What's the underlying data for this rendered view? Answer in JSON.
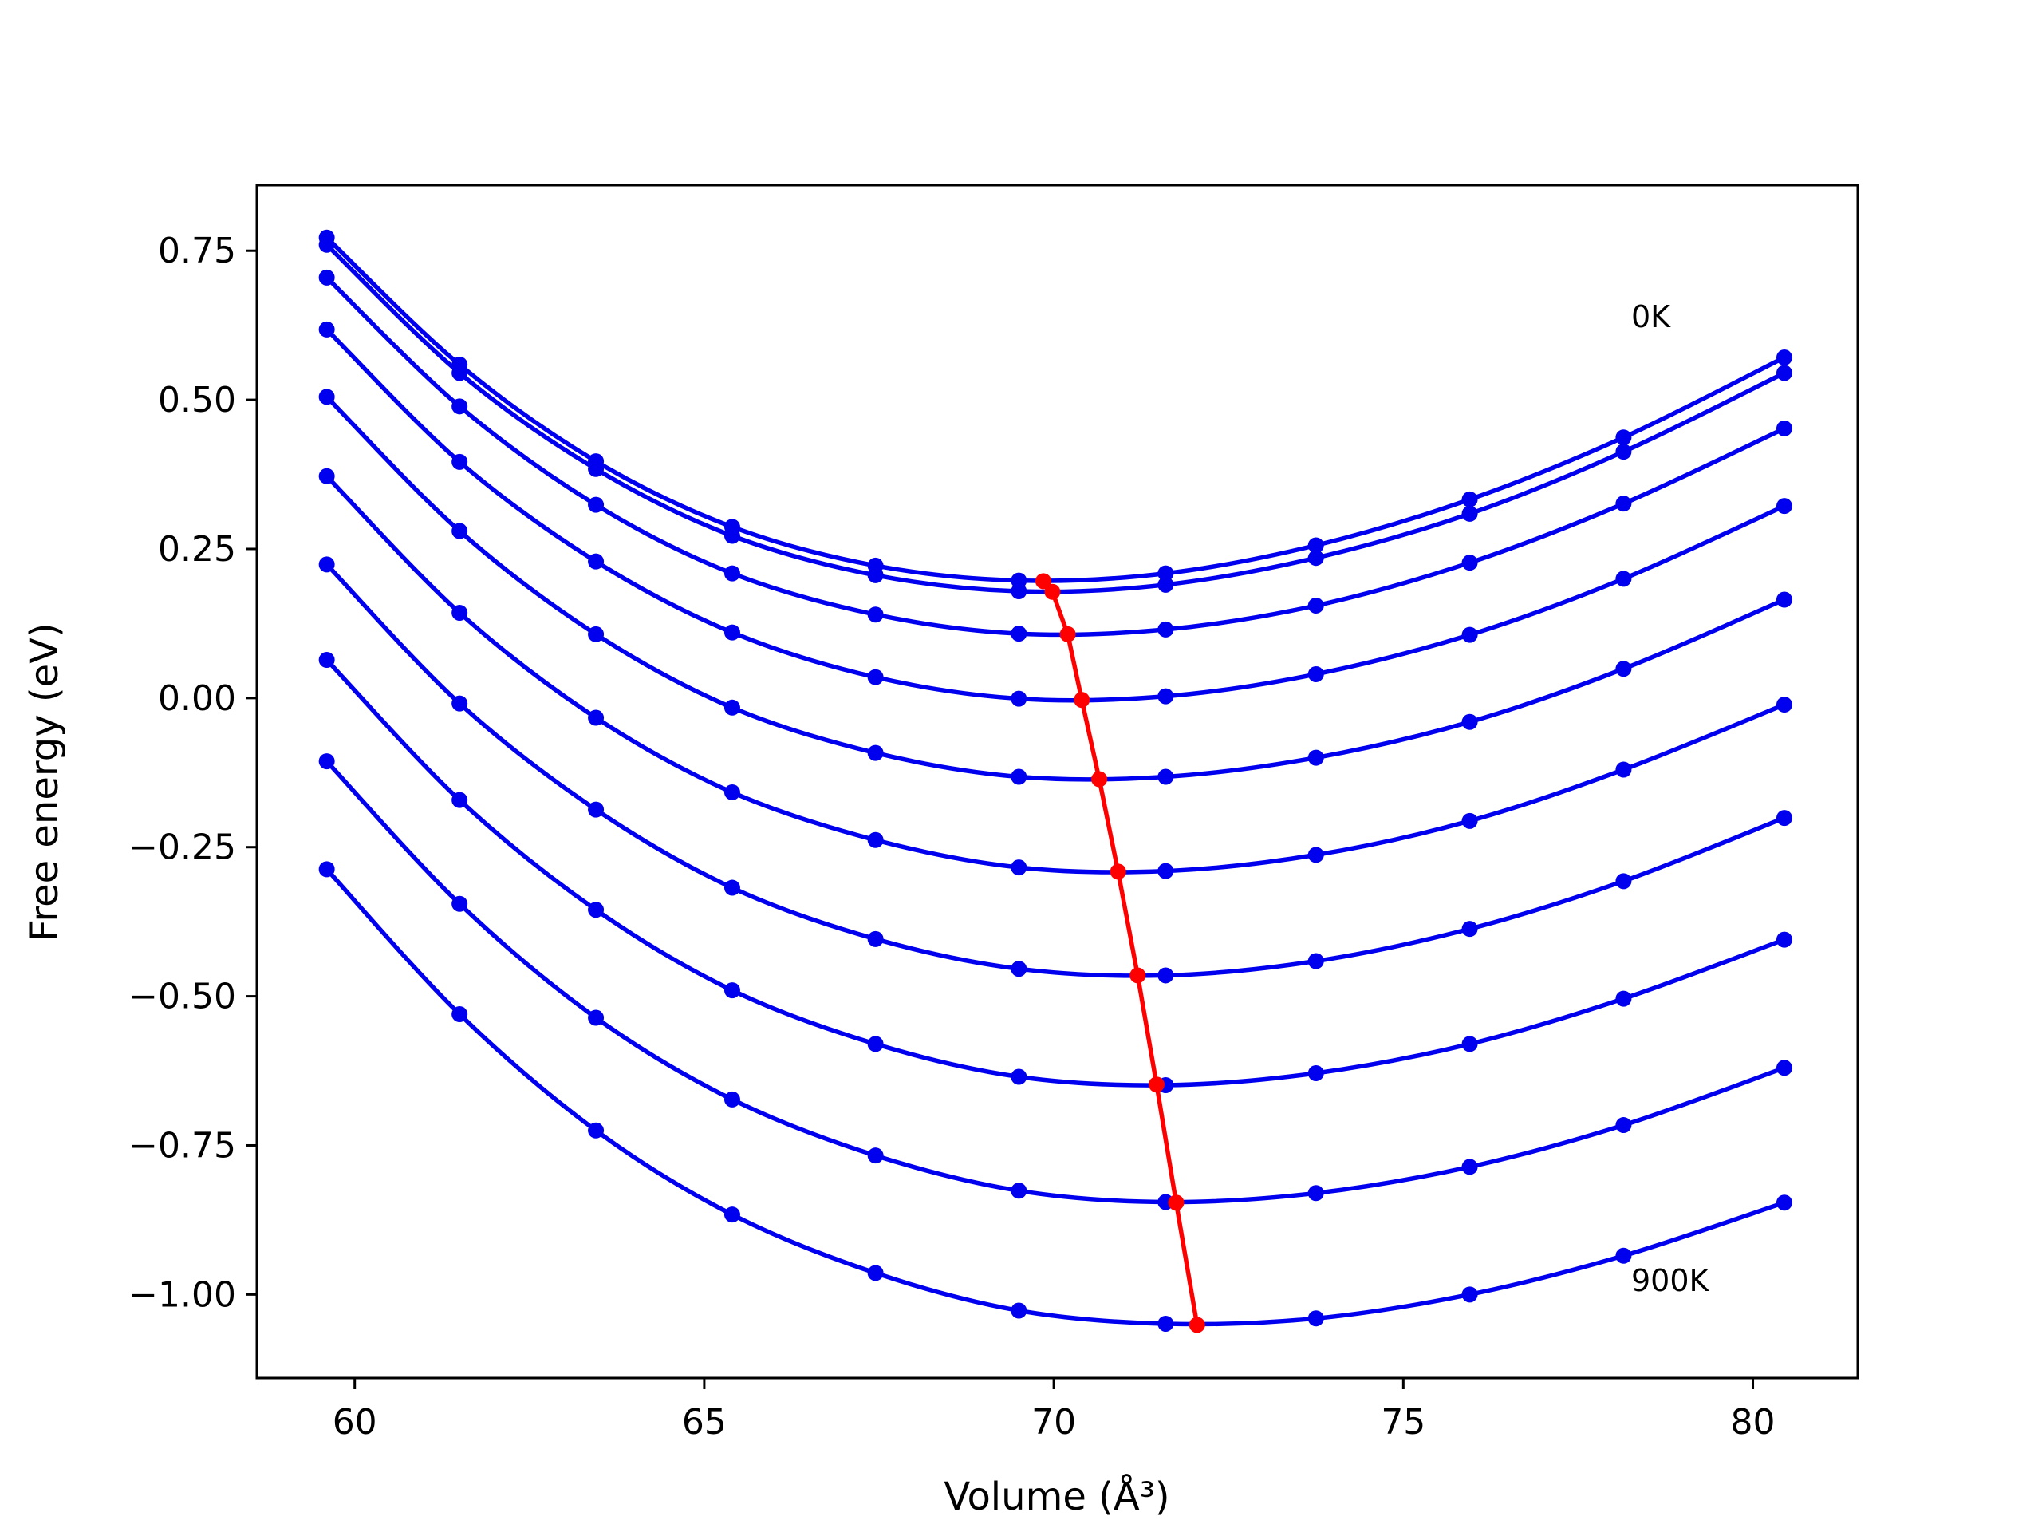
{
  "chart_data": {
    "type": "line",
    "title": "",
    "xlabel": "Volume",
    "xlabel_unit": "(Å³)",
    "ylabel": "Free energy (eV)",
    "xlim": [
      58.6,
      81.5
    ],
    "ylim": [
      -1.14,
      0.86
    ],
    "xticks": [
      60,
      65,
      70,
      75,
      80
    ],
    "xtick_labels": [
      "60",
      "65",
      "70",
      "75",
      "80"
    ],
    "yticks": [
      0.75,
      0.5,
      0.25,
      0.0,
      -0.25,
      -0.5,
      -0.75,
      -1.0
    ],
    "ytick_labels": [
      "0.75",
      "0.50",
      "0.25",
      "0.00",
      "−0.25",
      "−0.50",
      "−0.75",
      "−1.00"
    ],
    "grid": false,
    "legend": "none",
    "annotations": [
      {
        "text": "0K",
        "x": 78.1,
        "y": 0.62
      },
      {
        "text": "900K",
        "x": 78.1,
        "y": -0.995
      }
    ],
    "colors": {
      "isotherms": "#0000ee",
      "minimum_path": "#ff0000"
    },
    "x": [
      59.6,
      61.5,
      63.45,
      65.4,
      67.45,
      69.5,
      71.6,
      73.75,
      75.95,
      78.15,
      80.45
    ],
    "series": [
      {
        "values": [
          0.772,
          0.559,
          0.397,
          0.287,
          0.222,
          0.197,
          0.209,
          0.256,
          0.333,
          0.437,
          0.571
        ]
      },
      {
        "values": [
          0.76,
          0.545,
          0.384,
          0.272,
          0.206,
          0.179,
          0.19,
          0.235,
          0.309,
          0.413,
          0.545
        ]
      },
      {
        "values": [
          0.705,
          0.489,
          0.324,
          0.209,
          0.14,
          0.108,
          0.115,
          0.155,
          0.227,
          0.326,
          0.452
        ]
      },
      {
        "values": [
          0.618,
          0.396,
          0.229,
          0.11,
          0.035,
          -0.001,
          0.003,
          0.04,
          0.106,
          0.2,
          0.322
        ]
      },
      {
        "values": [
          0.505,
          0.28,
          0.107,
          -0.016,
          -0.092,
          -0.132,
          -0.132,
          -0.1,
          -0.04,
          0.049,
          0.165
        ]
      },
      {
        "values": [
          0.372,
          0.143,
          -0.033,
          -0.158,
          -0.238,
          -0.284,
          -0.29,
          -0.263,
          -0.206,
          -0.12,
          -0.011
        ]
      },
      {
        "values": [
          0.224,
          -0.009,
          -0.187,
          -0.318,
          -0.404,
          -0.454,
          -0.465,
          -0.441,
          -0.387,
          -0.307,
          -0.201
        ]
      },
      {
        "values": [
          0.064,
          -0.171,
          -0.355,
          -0.49,
          -0.58,
          -0.635,
          -0.649,
          -0.629,
          -0.58,
          -0.504,
          -0.405
        ]
      },
      {
        "values": [
          -0.106,
          -0.345,
          -0.536,
          -0.673,
          -0.767,
          -0.826,
          -0.845,
          -0.83,
          -0.786,
          -0.716,
          -0.62
        ]
      },
      {
        "values": [
          -0.287,
          -0.53,
          -0.725,
          -0.866,
          -0.964,
          -1.027,
          -1.049,
          -1.04,
          -1.0,
          -0.935,
          -0.846
        ]
      }
    ],
    "minimum_path": {
      "x": [
        69.85,
        69.98,
        70.2,
        70.4,
        70.65,
        70.92,
        71.2,
        71.47,
        71.75,
        72.05
      ],
      "y": [
        0.196,
        0.178,
        0.107,
        -0.003,
        -0.136,
        -0.291,
        -0.465,
        -0.648,
        -0.846,
        -1.051
      ]
    }
  }
}
